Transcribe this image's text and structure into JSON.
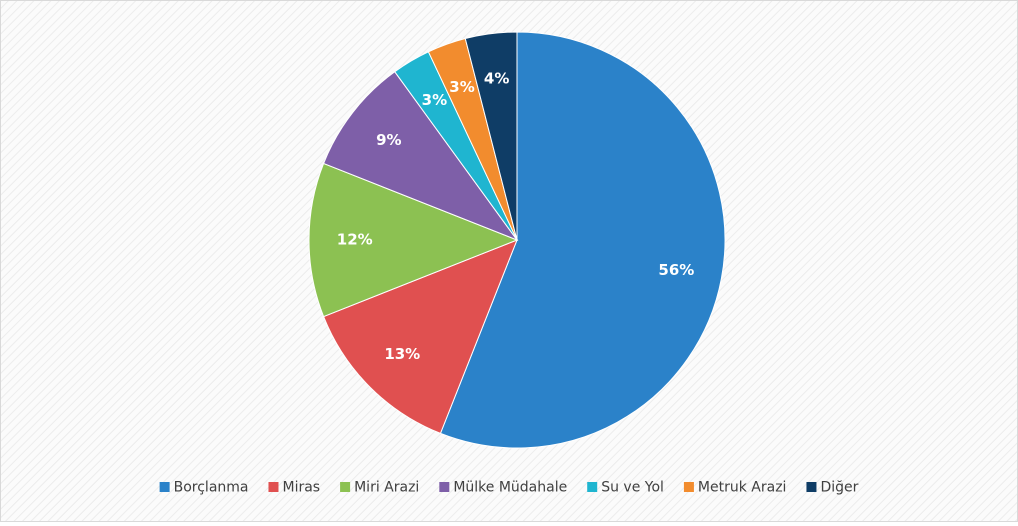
{
  "chart_data": {
    "type": "pie",
    "categories": [
      "Borçlanma",
      "Miras",
      "Miri Arazi",
      "Mülke Müdahale",
      "Su ve Yol",
      "Metruk Arazi",
      "Diğer"
    ],
    "values": [
      56,
      13,
      12,
      9,
      3,
      3,
      4
    ],
    "value_labels": [
      "56%",
      "13%",
      "12%",
      "9%",
      "3%",
      "3%",
      "4%"
    ],
    "colors": [
      "#2b82c9",
      "#e05050",
      "#8cc152",
      "#7e5fa8",
      "#1fb5d0",
      "#f28c2e",
      "#0f3d66"
    ],
    "legend": "bottom"
  }
}
